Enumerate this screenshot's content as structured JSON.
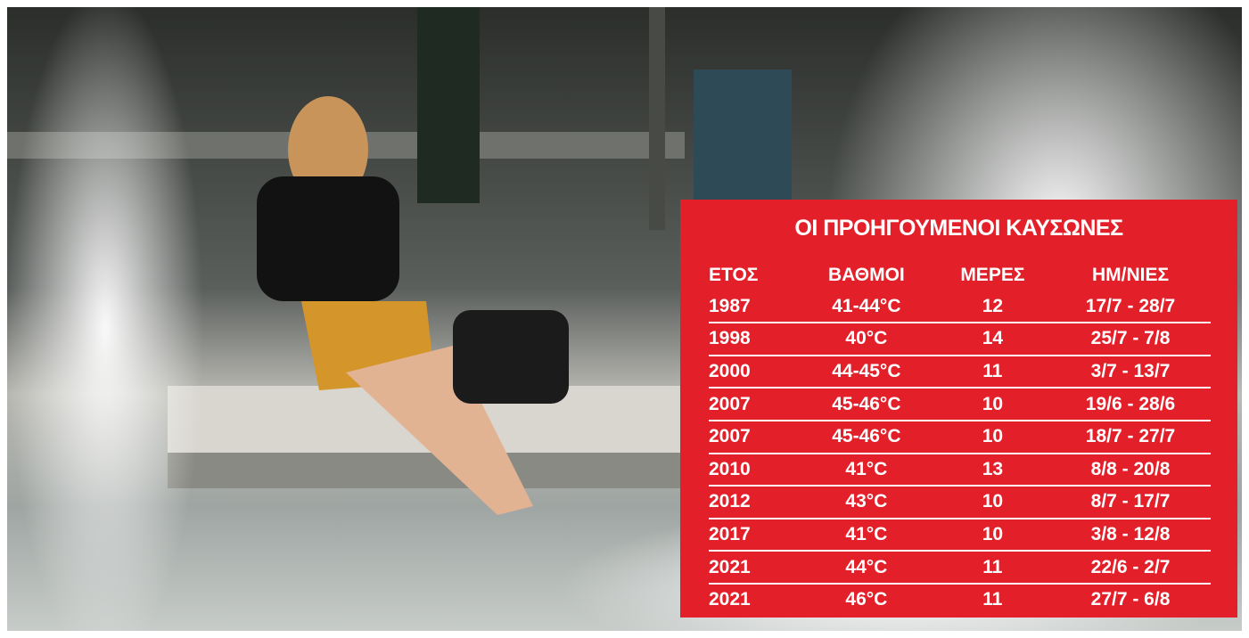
{
  "table": {
    "title": "ΟΙ ΠΡΟΗΓΟΥΜΕΝΟΙ ΚΑΥΣΩΝΕΣ",
    "headers": [
      "ΕΤΟΣ",
      "ΒΑΘΜΟΙ",
      "ΜΕΡΕΣ",
      "ΗΜ/ΝΙΕΣ"
    ],
    "rows": [
      [
        "1987",
        "41-44°C",
        "12",
        "17/7 - 28/7"
      ],
      [
        "1998",
        "40°C",
        "14",
        "25/7 - 7/8"
      ],
      [
        "2000",
        "44-45°C",
        "11",
        "3/7 - 13/7"
      ],
      [
        "2007",
        "45-46°C",
        "10",
        "19/6 - 28/6"
      ],
      [
        "2007",
        "45-46°C",
        "10",
        "18/7 - 27/7"
      ],
      [
        "2010",
        "41°C",
        "13",
        "8/8 - 20/8"
      ],
      [
        "2012",
        "43°C",
        "10",
        "8/7 - 17/7"
      ],
      [
        "2017",
        "41°C",
        "10",
        "3/8 - 12/8"
      ],
      [
        "2021",
        "44°C",
        "11",
        "22/6 - 2/7"
      ],
      [
        "2021",
        "46°C",
        "11",
        "27/7 - 6/8"
      ]
    ]
  }
}
